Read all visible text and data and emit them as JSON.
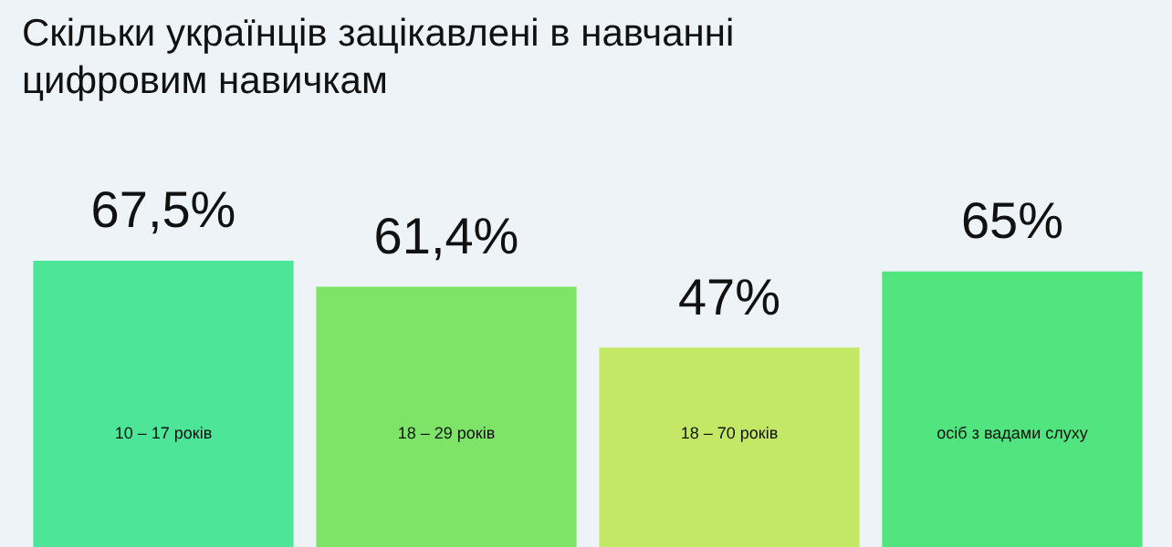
{
  "chart_data": {
    "type": "bar",
    "title": "Скільки українців зацікавлені в навчанні цифровим навичкам",
    "categories": [
      "10 – 17 років",
      "18 – 29 років",
      "18 – 70 років",
      "осіб з вадами слуху"
    ],
    "values": [
      67.5,
      61.4,
      47,
      65
    ],
    "value_labels": [
      "67,5%",
      "61,4%",
      "47%",
      "65%"
    ],
    "colors": [
      "#4de699",
      "#7de468",
      "#c3e866",
      "#52e47f"
    ],
    "legend": false
  }
}
